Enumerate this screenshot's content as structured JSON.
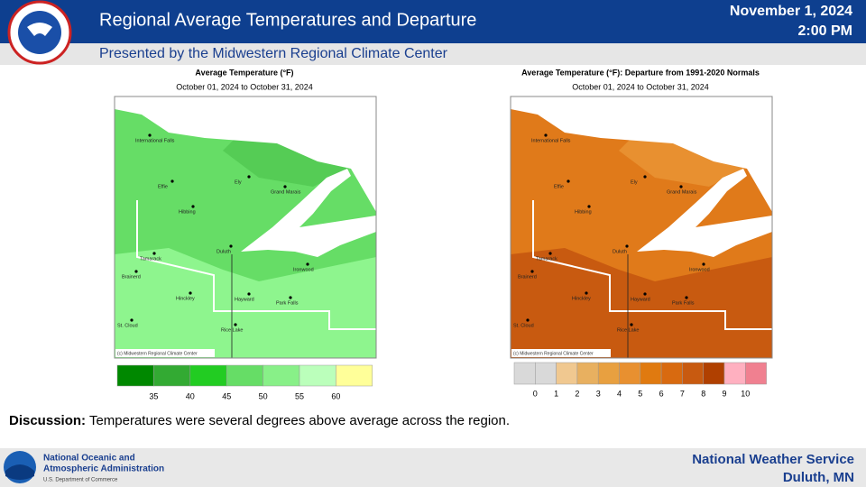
{
  "header": {
    "title": "Regional Average Temperatures and Departure",
    "subtitle": "Presented by the Midwestern Regional Climate Center",
    "date": "November 1, 2024",
    "time": "2:00 PM"
  },
  "maps": [
    {
      "title": "Average Temperature (°F)",
      "subtitle": "October 01, 2024 to October 31, 2024",
      "cities": [
        "International Falls",
        "Effie",
        "Ely",
        "Grand Marais",
        "Hibbing",
        "Duluth",
        "Tamarack",
        "Ironwood",
        "Brainerd",
        "Hinckley",
        "Hayward",
        "Park Falls",
        "St. Cloud",
        "Rice Lake"
      ],
      "credit": "(c) Midwestern Regional Climate Center",
      "legend_colors": [
        "#008800",
        "#33aa33",
        "#22cc22",
        "#66dd66",
        "#88f088",
        "#bbffbb",
        "#ffff99"
      ],
      "legend_labels": [
        35,
        40,
        45,
        50,
        55,
        60
      ]
    },
    {
      "title": "Average Temperature (°F): Departure from 1991-2020 Normals",
      "subtitle": "October 01, 2024 to October 31, 2024",
      "cities": [
        "International Falls",
        "Effie",
        "Ely",
        "Grand Marais",
        "Hibbing",
        "Duluth",
        "Tamarack",
        "Ironwood",
        "Brainerd",
        "Hinckley",
        "Hayward",
        "Park Falls",
        "St. Cloud",
        "Rice Lake"
      ],
      "credit": "(c) Midwestern Regional Climate Center",
      "legend_colors": [
        "#d9d9d9",
        "#d9d9d9",
        "#f0c890",
        "#e8b060",
        "#e8a040",
        "#e89030",
        "#e07a10",
        "#d86a10",
        "#c85a10",
        "#b04000",
        "#ffb0c0",
        "#f08090"
      ],
      "legend_labels": [
        0,
        1,
        2,
        3,
        4,
        5,
        6,
        7,
        8,
        9,
        10
      ]
    }
  ],
  "discussion": {
    "label": "Discussion:",
    "text": "Temperatures were several degrees above average across the region."
  },
  "footer": {
    "noaa_line1": "National Oceanic and",
    "noaa_line2": "Atmospheric Administration",
    "noaa_line3": "U.S. Department of Commerce",
    "nws_line1": "National Weather Service",
    "nws_line2": "Duluth, MN"
  }
}
